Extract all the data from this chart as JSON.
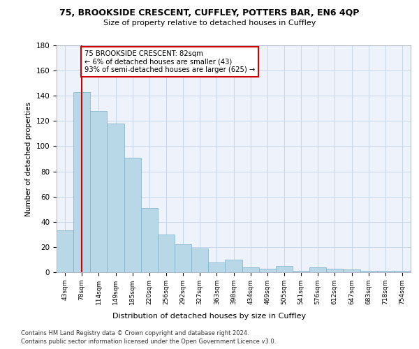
{
  "title1": "75, BROOKSIDE CRESCENT, CUFFLEY, POTTERS BAR, EN6 4QP",
  "title2": "Size of property relative to detached houses in Cuffley",
  "xlabel": "Distribution of detached houses by size in Cuffley",
  "ylabel": "Number of detached properties",
  "categories": [
    "43sqm",
    "78sqm",
    "114sqm",
    "149sqm",
    "185sqm",
    "220sqm",
    "256sqm",
    "292sqm",
    "327sqm",
    "363sqm",
    "398sqm",
    "434sqm",
    "469sqm",
    "505sqm",
    "541sqm",
    "576sqm",
    "612sqm",
    "647sqm",
    "683sqm",
    "718sqm",
    "754sqm"
  ],
  "values": [
    33,
    143,
    128,
    118,
    91,
    51,
    30,
    22,
    19,
    8,
    10,
    4,
    3,
    5,
    1,
    4,
    3,
    2,
    1,
    1,
    1
  ],
  "bar_color": "#b8d8e8",
  "bar_edge_color": "#7ab0cc",
  "vline_x": 1,
  "vline_color": "#cc0000",
  "annotation_text": "75 BROOKSIDE CRESCENT: 82sqm\n← 6% of detached houses are smaller (43)\n93% of semi-detached houses are larger (625) →",
  "annotation_box_color": "#ffffff",
  "annotation_box_edge": "#cc0000",
  "ylim": [
    0,
    180
  ],
  "yticks": [
    0,
    20,
    40,
    60,
    80,
    100,
    120,
    140,
    160,
    180
  ],
  "background_color": "#eef2fb",
  "footer1": "Contains HM Land Registry data © Crown copyright and database right 2024.",
  "footer2": "Contains public sector information licensed under the Open Government Licence v3.0."
}
